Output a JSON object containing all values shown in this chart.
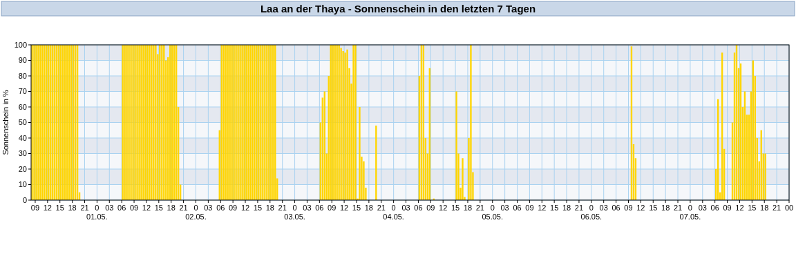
{
  "chart_data": {
    "type": "bar",
    "title": "Laa an der Thaya - Sonnenschein in den letzten 7 Tagen",
    "ylabel": "Sonnenschein in %",
    "color": "#ffd500",
    "grid": true,
    "x": [
      "--04-30T08:15",
      "--04-30T08:45",
      "--04-30T09:15",
      "--04-30T09:45",
      "--04-30T10:15",
      "--04-30T10:45",
      "--04-30T11:15",
      "--04-30T11:45",
      "--04-30T12:15",
      "--04-30T12:45",
      "--04-30T13:15",
      "--04-30T13:45",
      "--04-30T14:15",
      "--04-30T14:45",
      "--04-30T15:15",
      "--04-30T15:45",
      "--04-30T16:15",
      "--04-30T16:45",
      "--04-30T17:15",
      "--04-30T17:45",
      "--04-30T18:15",
      "--04-30T18:45",
      "--04-30T19:15",
      "--04-30T19:45",
      "--05-01T06:15",
      "--05-01T06:45",
      "--05-01T07:15",
      "--05-01T07:45",
      "--05-01T08:15",
      "--05-01T08:45",
      "--05-01T09:15",
      "--05-01T09:45",
      "--05-01T10:15",
      "--05-01T10:45",
      "--05-01T11:15",
      "--05-01T11:45",
      "--05-01T12:15",
      "--05-01T12:45",
      "--05-01T13:15",
      "--05-01T13:45",
      "--05-01T14:15",
      "--05-01T14:45",
      "--05-01T15:15",
      "--05-01T15:45",
      "--05-01T16:15",
      "--05-01T16:45",
      "--05-01T17:15",
      "--05-01T17:45",
      "--05-01T18:15",
      "--05-01T18:45",
      "--05-01T19:15",
      "--05-01T19:45",
      "--05-01T20:15",
      "--05-02T05:45",
      "--05-02T06:15",
      "--05-02T06:45",
      "--05-02T07:15",
      "--05-02T07:45",
      "--05-02T08:15",
      "--05-02T08:45",
      "--05-02T09:15",
      "--05-02T09:45",
      "--05-02T10:15",
      "--05-02T10:45",
      "--05-02T11:15",
      "--05-02T11:45",
      "--05-02T12:15",
      "--05-02T12:45",
      "--05-02T13:15",
      "--05-02T13:45",
      "--05-02T14:15",
      "--05-02T14:45",
      "--05-02T15:15",
      "--05-02T15:45",
      "--05-02T16:15",
      "--05-02T16:45",
      "--05-02T17:15",
      "--05-02T17:45",
      "--05-02T18:15",
      "--05-02T18:45",
      "--05-02T19:15",
      "--05-02T19:45",
      "--05-03T06:15",
      "--05-03T06:45",
      "--05-03T07:15",
      "--05-03T07:45",
      "--05-03T08:15",
      "--05-03T08:45",
      "--05-03T09:15",
      "--05-03T09:45",
      "--05-03T10:15",
      "--05-03T10:45",
      "--05-03T11:15",
      "--05-03T11:45",
      "--05-03T12:15",
      "--05-03T12:45",
      "--05-03T13:15",
      "--05-03T13:45",
      "--05-03T14:15",
      "--05-03T14:45",
      "--05-03T15:15",
      "--05-03T15:45",
      "--05-03T16:15",
      "--05-03T16:45",
      "--05-03T17:15",
      "--05-03T19:45",
      "--05-04T06:15",
      "--05-04T06:45",
      "--05-04T07:15",
      "--05-04T07:45",
      "--05-04T08:15",
      "--05-04T08:45",
      "--05-04T09:45",
      "--05-04T15:15",
      "--05-04T15:45",
      "--05-04T16:15",
      "--05-04T16:45",
      "--05-04T17:15",
      "--05-04T18:15",
      "--05-04T18:45",
      "--05-04T19:15",
      "--05-06T09:45",
      "--05-06T10:15",
      "--05-06T10:45",
      "--05-07T06:15",
      "--05-07T06:45",
      "--05-07T07:15",
      "--05-07T07:45",
      "--05-07T08:15",
      "--05-07T10:15",
      "--05-07T10:45",
      "--05-07T11:15",
      "--05-07T11:45",
      "--05-07T12:15",
      "--05-07T12:45",
      "--05-07T13:15",
      "--05-07T13:45",
      "--05-07T14:15",
      "--05-07T14:45",
      "--05-07T15:15",
      "--05-07T15:45",
      "--05-07T16:15",
      "--05-07T16:45",
      "--05-07T17:15",
      "--05-07T17:45",
      "--05-07T18:15"
    ],
    "values": [
      100,
      100,
      100,
      100,
      100,
      100,
      100,
      100,
      100,
      100,
      100,
      100,
      100,
      100,
      100,
      100,
      100,
      100,
      100,
      100,
      100,
      100,
      100,
      5,
      100,
      100,
      100,
      100,
      100,
      100,
      100,
      100,
      100,
      100,
      100,
      100,
      100,
      100,
      100,
      100,
      100,
      94,
      100,
      100,
      100,
      90,
      92,
      100,
      100,
      100,
      100,
      60,
      10,
      45,
      100,
      100,
      100,
      100,
      100,
      100,
      100,
      100,
      100,
      100,
      100,
      100,
      100,
      100,
      100,
      100,
      100,
      100,
      100,
      100,
      100,
      100,
      100,
      100,
      100,
      100,
      100,
      14,
      50,
      66,
      70,
      30,
      80,
      100,
      100,
      100,
      100,
      100,
      98,
      96,
      95,
      97,
      85,
      75,
      100,
      100,
      1,
      60,
      28,
      25,
      8,
      48,
      80,
      100,
      100,
      40,
      30,
      85,
      1,
      70,
      30,
      8,
      27,
      2,
      40,
      100,
      18,
      99,
      36,
      27,
      20,
      65,
      5,
      95,
      33,
      50,
      95,
      100,
      85,
      88,
      60,
      70,
      55,
      55,
      70,
      90,
      80,
      40,
      25,
      45,
      30,
      30
    ],
    "xlim": [
      "--04-30T08:00",
      "--05-08T00:00"
    ],
    "ylim": [
      0,
      100
    ],
    "yticks": [
      0,
      10,
      20,
      30,
      40,
      50,
      60,
      70,
      80,
      90,
      100
    ],
    "xticks": [
      {
        "value": "--04-30T09:00",
        "label": "09"
      },
      {
        "value": "--04-30T12:00",
        "label": "12"
      },
      {
        "value": "--04-30T15:00",
        "label": "15"
      },
      {
        "value": "--04-30T18:00",
        "label": "18"
      },
      {
        "value": "--04-30T21:00",
        "label": "21"
      },
      {
        "value": "--05-01T00:00",
        "label": "0\n01.05."
      },
      {
        "value": "--05-01T03:00",
        "label": "03"
      },
      {
        "value": "--05-01T06:00",
        "label": "06"
      },
      {
        "value": "--05-01T09:00",
        "label": "09"
      },
      {
        "value": "--05-01T12:00",
        "label": "12"
      },
      {
        "value": "--05-01T15:00",
        "label": "15"
      },
      {
        "value": "--05-01T18:00",
        "label": "18"
      },
      {
        "value": "--05-01T21:00",
        "label": "21"
      },
      {
        "value": "--05-02T00:00",
        "label": "0\n02.05."
      },
      {
        "value": "--05-02T03:00",
        "label": "03"
      },
      {
        "value": "--05-02T06:00",
        "label": "06"
      },
      {
        "value": "--05-02T09:00",
        "label": "09"
      },
      {
        "value": "--05-02T12:00",
        "label": "12"
      },
      {
        "value": "--05-02T15:00",
        "label": "15"
      },
      {
        "value": "--05-02T18:00",
        "label": "18"
      },
      {
        "value": "--05-02T21:00",
        "label": "21"
      },
      {
        "value": "--05-03T00:00",
        "label": "0\n03.05."
      },
      {
        "value": "--05-03T03:00",
        "label": "03"
      },
      {
        "value": "--05-03T06:00",
        "label": "06"
      },
      {
        "value": "--05-03T09:00",
        "label": "09"
      },
      {
        "value": "--05-03T12:00",
        "label": "12"
      },
      {
        "value": "--05-03T15:00",
        "label": "15"
      },
      {
        "value": "--05-03T18:00",
        "label": "18"
      },
      {
        "value": "--05-03T21:00",
        "label": "21"
      },
      {
        "value": "--05-04T00:00",
        "label": "0\n04.05."
      },
      {
        "value": "--05-04T03:00",
        "label": "03"
      },
      {
        "value": "--05-04T06:00",
        "label": "06"
      },
      {
        "value": "--05-04T09:00",
        "label": "09"
      },
      {
        "value": "--05-04T12:00",
        "label": "12"
      },
      {
        "value": "--05-04T15:00",
        "label": "15"
      },
      {
        "value": "--05-04T18:00",
        "label": "18"
      },
      {
        "value": "--05-04T21:00",
        "label": "21"
      },
      {
        "value": "--05-05T00:00",
        "label": "0\n05.05."
      },
      {
        "value": "--05-05T03:00",
        "label": "03"
      },
      {
        "value": "--05-05T06:00",
        "label": "06"
      },
      {
        "value": "--05-05T09:00",
        "label": "09"
      },
      {
        "value": "--05-05T12:00",
        "label": "12"
      },
      {
        "value": "--05-05T15:00",
        "label": "15"
      },
      {
        "value": "--05-05T18:00",
        "label": "18"
      },
      {
        "value": "--05-05T21:00",
        "label": "21"
      },
      {
        "value": "--05-06T00:00",
        "label": "0\n06.05."
      },
      {
        "value": "--05-06T03:00",
        "label": "03"
      },
      {
        "value": "--05-06T06:00",
        "label": "06"
      },
      {
        "value": "--05-06T09:00",
        "label": "09"
      },
      {
        "value": "--05-06T12:00",
        "label": "12"
      },
      {
        "value": "--05-06T15:00",
        "label": "15"
      },
      {
        "value": "--05-06T18:00",
        "label": "18"
      },
      {
        "value": "--05-06T21:00",
        "label": "21"
      },
      {
        "value": "--05-07T00:00",
        "label": "0\n07.05."
      },
      {
        "value": "--05-07T03:00",
        "label": "03"
      },
      {
        "value": "--05-07T06:00",
        "label": "06"
      },
      {
        "value": "--05-07T09:00",
        "label": "09"
      },
      {
        "value": "--05-07T12:00",
        "label": "12"
      },
      {
        "value": "--05-07T15:00",
        "label": "15"
      },
      {
        "value": "--05-07T18:00",
        "label": "18"
      },
      {
        "value": "--05-07T21:00",
        "label": "21"
      },
      {
        "value": "--05-08T00:00",
        "label": "00"
      }
    ]
  }
}
